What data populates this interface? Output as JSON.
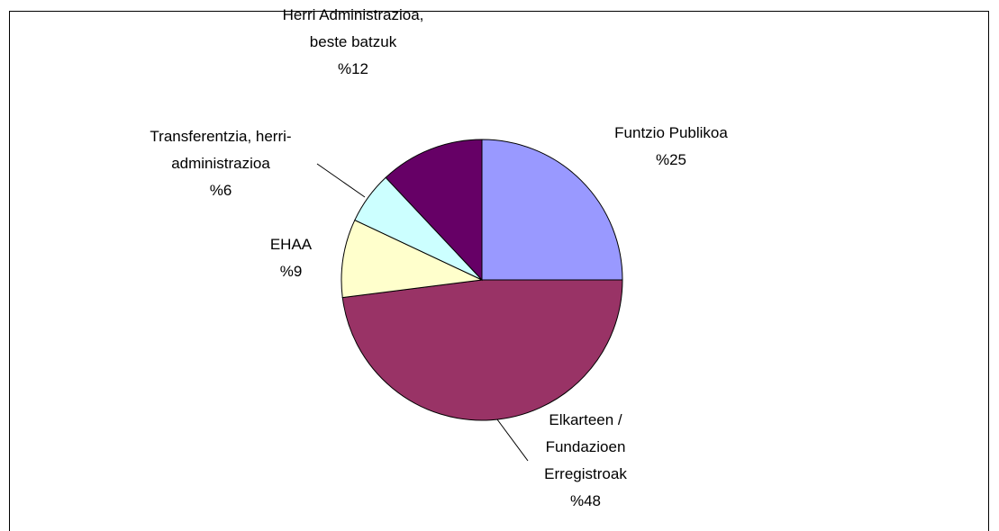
{
  "chart_data": {
    "type": "pie",
    "categories": [
      "Funtzio Publikoa",
      "Elkarteen / Fundazioen Erregistroak",
      "EHAA",
      "Transferentzia, herri-administrazioa",
      "Herri Administrazioa, beste batzuk"
    ],
    "values": [
      25,
      48,
      9,
      6,
      12
    ],
    "value_labels": [
      "%25",
      "%48",
      "%9",
      "%6",
      "%12"
    ],
    "colors": [
      "#9999ff",
      "#993366",
      "#ffffcc",
      "#ccffff",
      "#660066"
    ]
  }
}
